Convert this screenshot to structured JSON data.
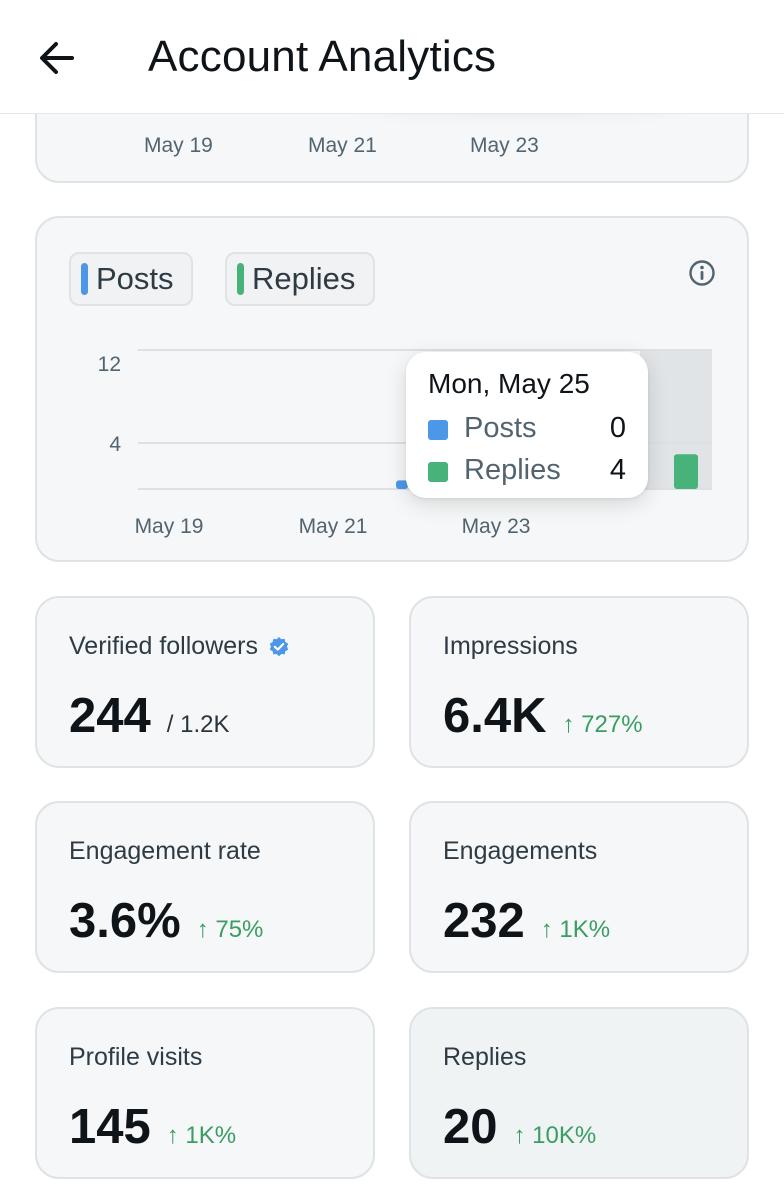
{
  "header": {
    "title": "Account Analytics",
    "back_icon": "arrow-left-icon"
  },
  "top_chart": {
    "x_labels": [
      "May 19",
      "May 21",
      "May 23"
    ]
  },
  "chart": {
    "legend": [
      {
        "label": "Posts",
        "color": "#4c97e8"
      },
      {
        "label": "Replies",
        "color": "#47b27a"
      }
    ],
    "info_icon": "info-icon",
    "tooltip": {
      "date": "Mon, May 25",
      "rows": [
        {
          "label": "Posts",
          "value": "0",
          "color": "#4c97e8"
        },
        {
          "label": "Replies",
          "value": "4",
          "color": "#47b27a"
        }
      ]
    }
  },
  "chart_data": {
    "type": "bar",
    "y_ticks": [
      "12",
      "4"
    ],
    "x_labels": [
      "May 19",
      "May 21",
      "May 23"
    ],
    "categories": [
      "May 23",
      "May 25"
    ],
    "series": [
      {
        "name": "Posts",
        "values": [
          1,
          0
        ]
      },
      {
        "name": "Replies",
        "values": [
          0,
          4
        ]
      }
    ],
    "colors": [
      "#4c97e8",
      "#47b27a"
    ],
    "ylim": [
      0,
      16
    ],
    "grid": true,
    "highlighted_category": "May 25"
  },
  "stats": [
    {
      "label": "Verified followers",
      "value": "244",
      "sub": "/ 1.2K",
      "delta": "",
      "verified_badge": true
    },
    {
      "label": "Impressions",
      "value": "6.4K",
      "sub": "",
      "delta": "↑ 727%"
    },
    {
      "label": "Engagement rate",
      "value": "3.6%",
      "sub": "",
      "delta": "↑ 75%"
    },
    {
      "label": "Engagements",
      "value": "232",
      "sub": "",
      "delta": "↑ 1K%"
    },
    {
      "label": "Profile visits",
      "value": "145",
      "sub": "",
      "delta": "↑ 1K%"
    },
    {
      "label": "Replies",
      "value": "20",
      "sub": "",
      "delta": "↑ 10K%"
    }
  ]
}
